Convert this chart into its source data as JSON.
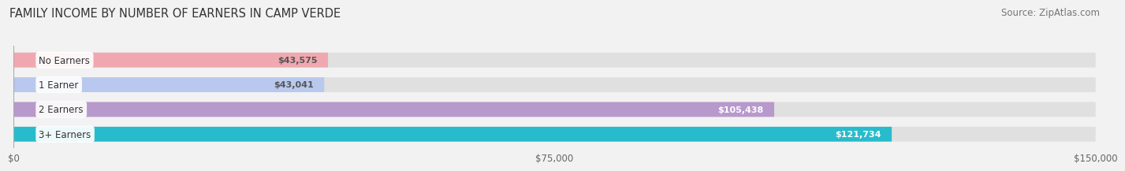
{
  "title": "FAMILY INCOME BY NUMBER OF EARNERS IN CAMP VERDE",
  "source": "Source: ZipAtlas.com",
  "categories": [
    "No Earners",
    "1 Earner",
    "2 Earners",
    "3+ Earners"
  ],
  "values": [
    43575,
    43041,
    105438,
    121734
  ],
  "bar_colors": [
    "#f0a8b0",
    "#b8c8ee",
    "#b899cc",
    "#28bbcc"
  ],
  "label_colors": [
    "#555555",
    "#555555",
    "#ffffff",
    "#ffffff"
  ],
  "xmax": 150000,
  "xticks": [
    0,
    75000,
    150000
  ],
  "xtick_labels": [
    "$0",
    "$75,000",
    "$150,000"
  ],
  "background_color": "#f2f2f2",
  "bar_bg_color": "#e0e0e0",
  "title_fontsize": 10.5,
  "source_fontsize": 8.5,
  "label_fontsize": 8.5,
  "value_fontsize": 8.0
}
